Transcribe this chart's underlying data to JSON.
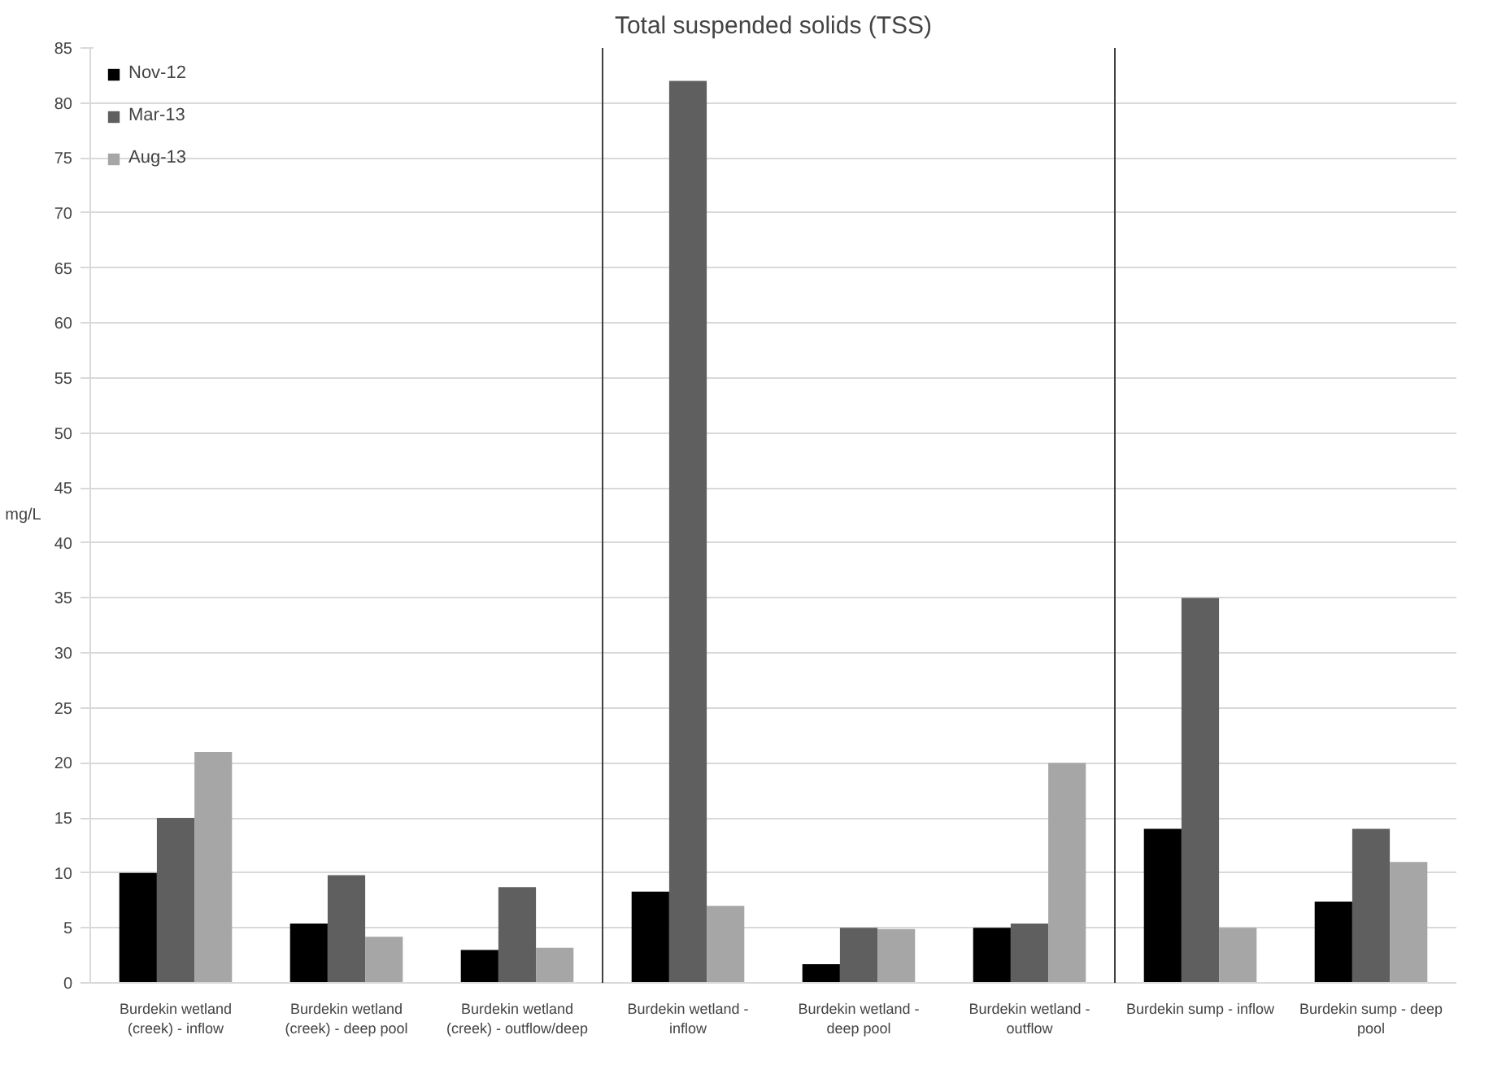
{
  "chart_data": {
    "type": "bar",
    "title": "Total suspended solids (TSS)",
    "ylabel": "mg/L",
    "categories": [
      "Burdekin wetland (creek) - inflow",
      "Burdekin wetland (creek) - deep pool",
      "Burdekin wetland (creek) - outflow/deep",
      "Burdekin wetland - inflow",
      "Burdekin wetland - deep pool",
      "Burdekin wetland - outflow",
      "Burdekin sump - inflow",
      "Burdekin sump - deep pool"
    ],
    "series": [
      {
        "name": "Nov-12",
        "color": "#000000",
        "values": [
          10,
          5.4,
          3.0,
          8.3,
          1.7,
          5.0,
          14,
          7.4
        ]
      },
      {
        "name": "Mar-13",
        "color": "#5f5f5f",
        "values": [
          15,
          9.8,
          8.7,
          82,
          5.0,
          5.4,
          35,
          14
        ]
      },
      {
        "name": "Aug-13",
        "color": "#a6a6a6",
        "values": [
          21,
          4.2,
          3.2,
          7.0,
          4.9,
          20,
          5.0,
          11
        ]
      }
    ],
    "ylim": [
      0,
      85
    ],
    "yticks": [
      0,
      5,
      10,
      15,
      20,
      25,
      30,
      35,
      40,
      45,
      50,
      55,
      60,
      65,
      70,
      75,
      80,
      85
    ],
    "grid": "y",
    "legend": "top left"
  }
}
